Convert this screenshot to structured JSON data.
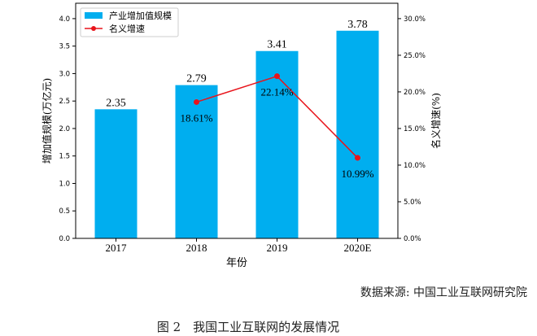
{
  "chart_data": {
    "type": "bar+line",
    "categories": [
      "2017",
      "2018",
      "2019",
      "2020E"
    ],
    "series": [
      {
        "name": "产业增加值规模",
        "type": "bar",
        "axis": "left",
        "values": [
          2.35,
          2.79,
          3.41,
          3.78
        ],
        "labels": [
          "2.35",
          "2.79",
          "3.41",
          "3.78"
        ],
        "color": "#00aeef"
      },
      {
        "name": "名义增速",
        "type": "line",
        "axis": "right",
        "x": [
          "2018",
          "2019",
          "2020E"
        ],
        "values": [
          18.61,
          22.14,
          10.99
        ],
        "labels": [
          "18.61%",
          "22.14%",
          "10.99%"
        ],
        "color": "#e8141b"
      }
    ],
    "xlabel": "年份",
    "ylabel": "增加值规模(万亿元)",
    "y2label": "名义增速(%)",
    "ylim": [
      0,
      4.28
    ],
    "y2lim": [
      0,
      32.1
    ],
    "yticks": [
      "0.0",
      "0.5",
      "1.0",
      "1.5",
      "2.0",
      "2.5",
      "3.0",
      "3.5",
      "4.0"
    ],
    "y2ticks": [
      "0.0%",
      "5.0%",
      "10.0%",
      "15.0%",
      "20.0%",
      "25.0%",
      "30.0%"
    ],
    "legend": "top-left",
    "grid": false
  },
  "source": "数据来源: 中国工业互联网研究院",
  "caption": "图 2　我国工业互联网的发展情况"
}
